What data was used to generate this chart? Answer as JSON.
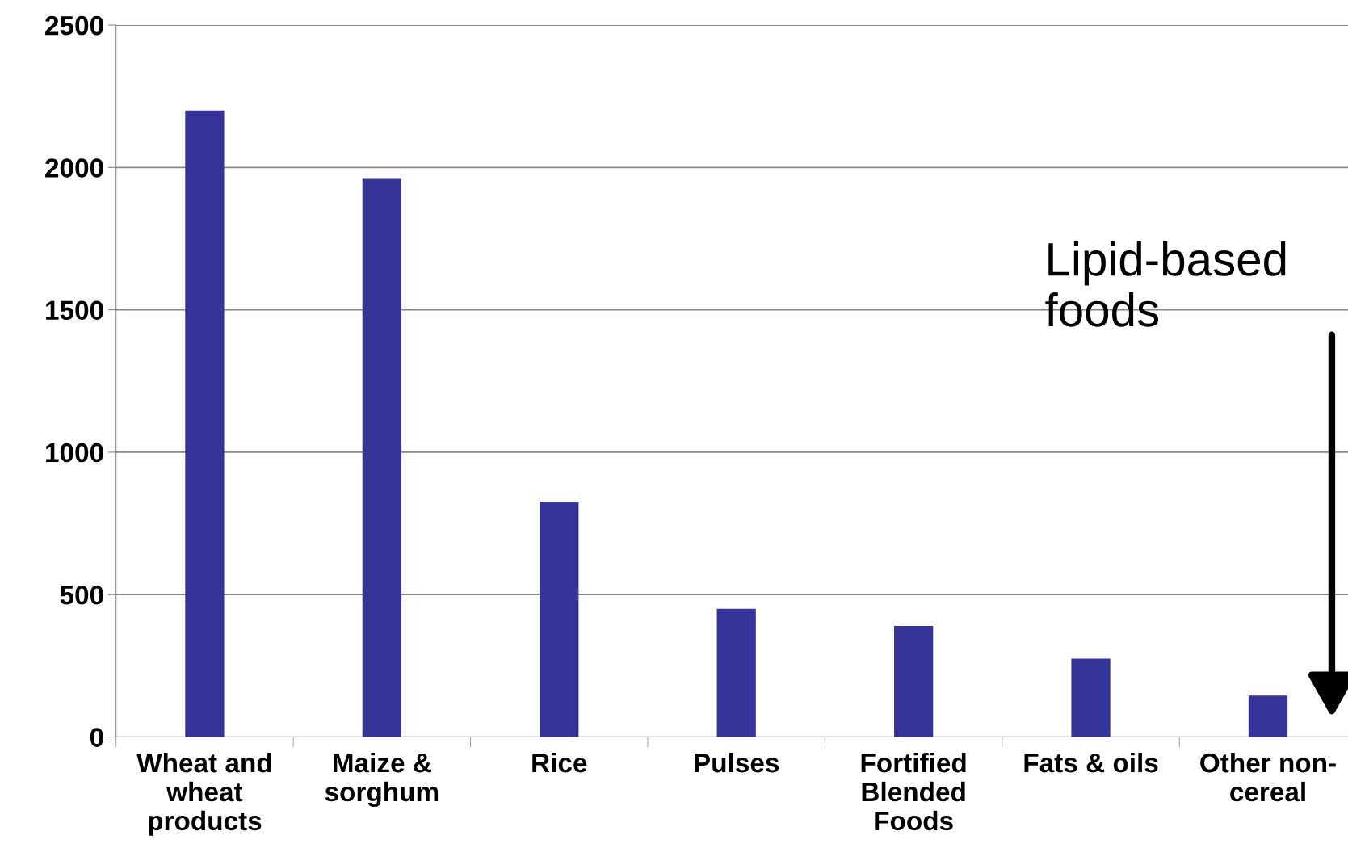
{
  "chart_data": {
    "type": "bar",
    "categories": [
      "Wheat and\nwheat\nproducts",
      "Maize &\nsorghum",
      "Rice",
      "Pulses",
      "Fortified\nBlended\nFoods",
      "Fats & oils",
      "Other non-\ncereal"
    ],
    "values": [
      2200,
      1960,
      827,
      450,
      390,
      275,
      145
    ],
    "color": "#35349a",
    "ylim": [
      0,
      2500
    ],
    "yticks": [
      0,
      500,
      1000,
      1500,
      2000,
      2500
    ],
    "grid": "y",
    "annotations": [
      "Lipid-based\nfoods"
    ]
  }
}
